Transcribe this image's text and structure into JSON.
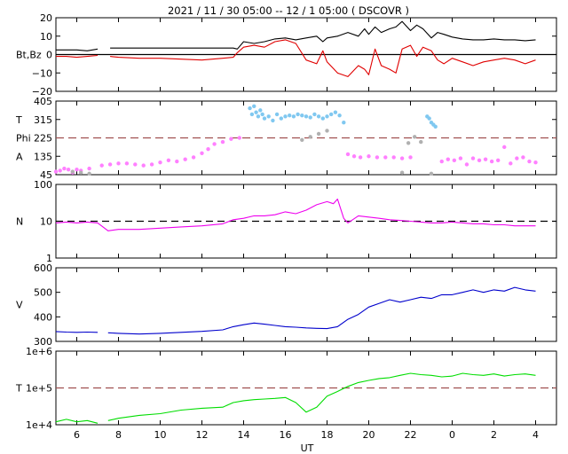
{
  "title": "2021 / 11 / 30   05:00 -- 12 /  1   05:00 ( DSCOVR )",
  "xlabel": "UT",
  "colors": {
    "bt": "#000000",
    "bz": "#e00000",
    "theta": "#80c8f0",
    "phi": "#ff80ff",
    "phi_gray": "#b0b0b0",
    "density": "#ee00ee",
    "velocity": "#0000cc",
    "temperature": "#00dd00",
    "ref_line": "#a05050"
  },
  "chart_data": [
    {
      "type": "line",
      "panel": "magnetic_field",
      "ylabel": "Bt,Bz",
      "ylim": [
        -20,
        20
      ],
      "yticks": [
        20,
        10,
        0,
        -10,
        -20
      ],
      "ytick_labels": [
        "20",
        "10",
        "0",
        "−10",
        "−20"
      ],
      "x_unit": "hours since 05:00 UT",
      "series": [
        {
          "name": "Bt",
          "x": [
            0,
            0.5,
            1,
            1.5,
            2,
            2.5,
            2.6,
            3,
            4,
            5,
            6,
            7,
            8,
            8.5,
            8.7,
            9,
            9.5,
            10,
            10.5,
            11,
            11.5,
            12,
            12.5,
            12.8,
            13,
            13.5,
            14,
            14.5,
            14.8,
            15,
            15.3,
            15.6,
            16,
            16.3,
            16.6,
            17,
            17.3,
            17.6,
            18,
            18.3,
            18.6,
            19,
            19.5,
            20,
            20.5,
            21,
            21.5,
            22,
            22.5,
            23
          ],
          "y": [
            2.5,
            2.5,
            2.5,
            2,
            3,
            null,
            3.5,
            3.5,
            3.5,
            3.5,
            3.5,
            3.5,
            3.5,
            3.5,
            3,
            7,
            6,
            7,
            8.5,
            9,
            8,
            9,
            10,
            7,
            9,
            10,
            12,
            10,
            14,
            11,
            15,
            12,
            14,
            15,
            18,
            13,
            16,
            14,
            9,
            12,
            11,
            9.5,
            8.5,
            8,
            8,
            8.5,
            8,
            8,
            7.5,
            8
          ]
        },
        {
          "name": "Bz",
          "x": [
            0,
            0.5,
            1,
            1.5,
            2,
            2.5,
            2.6,
            3,
            4,
            5,
            6,
            7,
            8,
            8.5,
            8.7,
            9,
            9.5,
            10,
            10.5,
            11,
            11.5,
            12,
            12.5,
            12.8,
            13,
            13.5,
            14,
            14.5,
            14.8,
            15,
            15.3,
            15.6,
            16,
            16.3,
            16.6,
            17,
            17.3,
            17.6,
            18,
            18.3,
            18.6,
            19,
            19.5,
            20,
            20.5,
            21,
            21.5,
            22,
            22.5,
            23
          ],
          "y": [
            -1,
            -1,
            -1.5,
            -1,
            -0.5,
            null,
            -1,
            -1.5,
            -2,
            -2,
            -2.5,
            -3,
            -2,
            -1.5,
            1,
            4,
            5,
            4,
            7,
            8,
            6,
            -3,
            -5,
            2,
            -4,
            -10,
            -12,
            -6,
            -8,
            -11,
            3,
            -6,
            -8,
            -10,
            3,
            5,
            -1,
            4,
            2,
            -3,
            -5,
            -2,
            -4,
            -6,
            -4,
            -3,
            -2,
            -3,
            -5,
            -3
          ]
        }
      ]
    },
    {
      "type": "scatter",
      "panel": "angles",
      "ylabel_lines": [
        "T",
        "Phi",
        "A"
      ],
      "ylim": [
        45,
        405
      ],
      "yticks": [
        405,
        315,
        225,
        135,
        45
      ],
      "reference": 225,
      "series": [
        {
          "name": "Theta",
          "x": [
            9.3,
            9.4,
            9.5,
            9.6,
            9.7,
            9.8,
            9.9,
            10,
            10.2,
            10.4,
            10.6,
            10.8,
            11,
            11.2,
            11.4,
            11.6,
            11.8,
            12,
            12.2,
            12.4,
            12.6,
            12.8,
            13,
            13.2,
            13.4,
            13.6,
            13.8,
            17.8,
            17.9,
            18,
            18.1,
            18.2
          ],
          "y": [
            370,
            340,
            380,
            350,
            330,
            360,
            340,
            320,
            330,
            310,
            340,
            320,
            330,
            335,
            330,
            340,
            335,
            330,
            325,
            340,
            330,
            320,
            330,
            340,
            350,
            335,
            300,
            330,
            320,
            300,
            290,
            280
          ]
        },
        {
          "name": "Phi",
          "x": [
            0,
            0.2,
            0.4,
            0.6,
            0.8,
            1,
            1.2,
            1.6,
            2.2,
            2.6,
            3,
            3.4,
            3.8,
            4.2,
            4.6,
            5,
            5.4,
            5.8,
            6.2,
            6.6,
            7,
            7.3,
            7.6,
            8,
            8.4,
            8.8,
            14,
            14.3,
            14.6,
            15,
            15.4,
            15.8,
            16.2,
            16.6,
            17,
            18.5,
            18.8,
            19.1,
            19.4,
            19.7,
            20,
            20.3,
            20.6,
            20.9,
            21.2,
            21.5,
            21.8,
            22.1,
            22.4,
            22.7,
            23
          ],
          "y": [
            60,
            65,
            75,
            70,
            55,
            70,
            65,
            75,
            90,
            95,
            100,
            100,
            95,
            90,
            95,
            105,
            115,
            110,
            120,
            130,
            150,
            170,
            195,
            205,
            220,
            225,
            145,
            135,
            130,
            135,
            130,
            130,
            130,
            125,
            130,
            110,
            120,
            115,
            125,
            95,
            125,
            115,
            120,
            110,
            115,
            180,
            100,
            125,
            130,
            110,
            105
          ]
        },
        {
          "name": "Phi (sparse)",
          "x": [
            0.8,
            1.2,
            1.6,
            11.8,
            12.2,
            12.6,
            13,
            16.6,
            16.9,
            17.2,
            17.5,
            18
          ],
          "y": [
            60,
            55,
            50,
            215,
            230,
            245,
            260,
            55,
            200,
            230,
            205,
            50
          ]
        }
      ]
    },
    {
      "type": "line",
      "panel": "density",
      "ylabel": "N",
      "yscale": "log",
      "ylim": [
        1,
        100
      ],
      "yticks": [
        100,
        10,
        1
      ],
      "reference": 10,
      "series": [
        {
          "name": "N",
          "x": [
            0,
            0.5,
            1,
            1.5,
            2,
            2.5,
            3,
            4,
            5,
            6,
            7,
            8,
            8.5,
            9,
            9.5,
            10,
            10.5,
            11,
            11.5,
            12,
            12.5,
            13,
            13.3,
            13.5,
            13.8,
            14,
            14.5,
            15,
            15.5,
            16,
            16.5,
            17,
            17.5,
            18,
            18.5,
            19,
            19.5,
            20,
            20.5,
            21,
            21.5,
            22,
            22.5,
            23
          ],
          "y": [
            9,
            9.5,
            9,
            9.5,
            9,
            5.5,
            6,
            6,
            6.5,
            7,
            7.5,
            8.5,
            11,
            12,
            14,
            14,
            15,
            18,
            16,
            20,
            28,
            34,
            30,
            40,
            12,
            9,
            14,
            13,
            12,
            11,
            10.5,
            10,
            9.5,
            9,
            9,
            9.5,
            9,
            8.5,
            8.5,
            8,
            8,
            7.5,
            7.5,
            7.5
          ]
        }
      ]
    },
    {
      "type": "line",
      "panel": "velocity",
      "ylabel": "V",
      "ylim": [
        300,
        600
      ],
      "yticks": [
        600,
        500,
        400,
        300
      ],
      "series": [
        {
          "name": "V",
          "x": [
            0,
            0.5,
            1,
            1.5,
            2,
            2.3,
            2.5,
            3,
            4,
            5,
            6,
            7,
            8,
            8.5,
            9,
            9.5,
            10,
            10.5,
            11,
            11.5,
            12,
            12.5,
            13,
            13.5,
            14,
            14.5,
            15,
            15.5,
            16,
            16.5,
            17,
            17.5,
            18,
            18.5,
            19,
            19.5,
            20,
            20.5,
            21,
            21.5,
            22,
            22.5,
            23
          ],
          "y": [
            340,
            338,
            337,
            338,
            337,
            null,
            335,
            333,
            330,
            333,
            337,
            341,
            347,
            360,
            368,
            375,
            370,
            365,
            360,
            358,
            355,
            353,
            352,
            360,
            390,
            410,
            440,
            455,
            470,
            460,
            470,
            480,
            475,
            490,
            490,
            500,
            510,
            500,
            510,
            505,
            520,
            510,
            505
          ]
        }
      ]
    },
    {
      "type": "line",
      "panel": "temperature",
      "ylabel": "T",
      "yscale": "log",
      "ylim": [
        10000,
        1000000
      ],
      "yticks": [
        1000000,
        100000,
        10000
      ],
      "ytick_labels": [
        "1e+6",
        "1e+5",
        "1e+4"
      ],
      "reference": 100000,
      "series": [
        {
          "name": "T",
          "x": [
            0,
            0.5,
            1,
            1.5,
            2,
            2.3,
            2.5,
            3,
            4,
            5,
            6,
            7,
            8,
            8.5,
            9,
            9.5,
            10,
            10.5,
            11,
            11.5,
            12,
            12.5,
            13,
            13.5,
            14,
            14.5,
            15,
            15.5,
            16,
            16.5,
            17,
            17.5,
            18,
            18.5,
            19,
            19.5,
            20,
            20.5,
            21,
            21.5,
            22,
            22.5,
            23
          ],
          "y": [
            12000,
            14000,
            12000,
            13000,
            11000,
            null,
            13000,
            15000,
            18000,
            20000,
            25000,
            28000,
            30000,
            40000,
            45000,
            48000,
            50000,
            52000,
            55000,
            40000,
            22000,
            30000,
            60000,
            80000,
            110000,
            140000,
            160000,
            180000,
            190000,
            220000,
            250000,
            230000,
            220000,
            200000,
            210000,
            250000,
            230000,
            220000,
            240000,
            210000,
            230000,
            240000,
            220000
          ]
        }
      ]
    }
  ],
  "x_axis": {
    "ticks": [
      1,
      3,
      5,
      7,
      9,
      11,
      13,
      15,
      17,
      19,
      21,
      23
    ],
    "tick_labels": [
      "6",
      "8",
      "10",
      "12",
      "14",
      "16",
      "18",
      "20",
      "22",
      "0",
      "2",
      "4"
    ],
    "range": [
      0,
      24
    ]
  }
}
